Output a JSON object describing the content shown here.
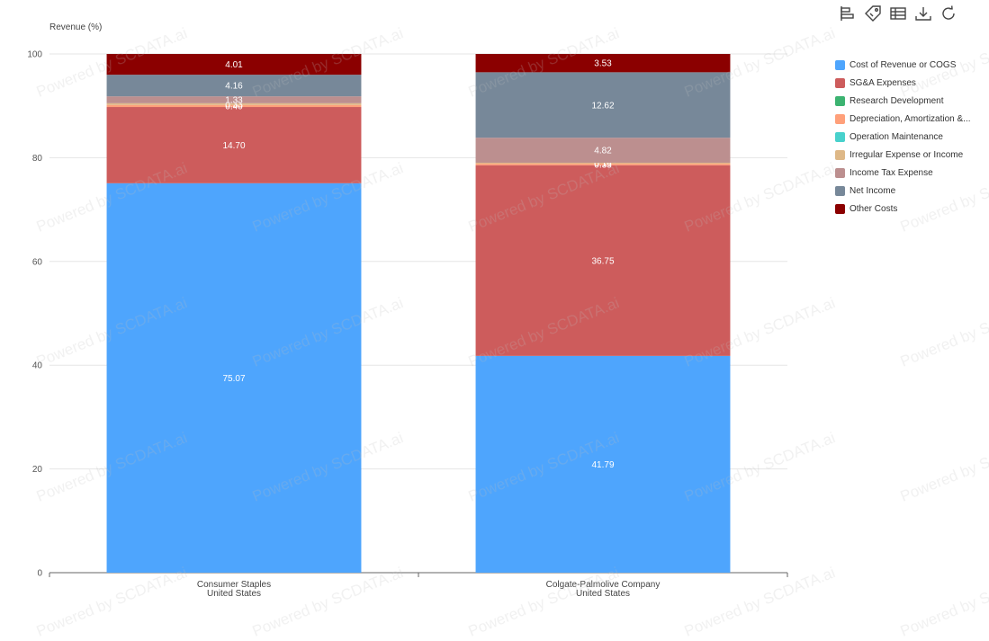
{
  "toolbar": {
    "icons": [
      "bar-chart-icon",
      "tag-icon",
      "table-icon",
      "download-icon",
      "refresh-icon"
    ]
  },
  "watermark": "Powered by SCDATA.ai",
  "chart_data": {
    "type": "bar",
    "stacked": true,
    "ylabel": "Revenue (%)",
    "ylim": [
      0,
      100
    ],
    "yticks": [
      "0",
      "20",
      "40",
      "60",
      "80",
      "100"
    ],
    "categories": [
      {
        "name": "Consumer Staples",
        "sub": "United States"
      },
      {
        "name": "Colgate-Palmolive Company",
        "sub": "United States"
      }
    ],
    "series": [
      {
        "name": "Cost of Revenue or COGS",
        "color": "#4ea5fd",
        "values": [
          75.07,
          41.79
        ],
        "labels": [
          "75.07",
          "41.79"
        ]
      },
      {
        "name": "SG&A Expenses",
        "color": "#cd5c5c",
        "values": [
          14.7,
          36.75
        ],
        "labels": [
          "14.70",
          "36.75"
        ]
      },
      {
        "name": "Research Development",
        "color": "#3cb371",
        "values": [
          0.0,
          0.0
        ],
        "labels": [
          "",
          ""
        ]
      },
      {
        "name": "Depreciation, Amortization &...",
        "color": "#ffa07a",
        "values": [
          0.4,
          0.33
        ],
        "labels": [
          "0.40",
          "0.33"
        ]
      },
      {
        "name": "Operation Maintenance",
        "color": "#48d1cc",
        "values": [
          0.0,
          0.0
        ],
        "labels": [
          "",
          ""
        ]
      },
      {
        "name": "Irregular Expense or Income",
        "color": "#deb887",
        "values": [
          0.33,
          0.16
        ],
        "labels": [
          "0.33",
          "0.16"
        ]
      },
      {
        "name": "Income Tax Expense",
        "color": "#bc8f8f",
        "values": [
          1.33,
          4.82
        ],
        "labels": [
          "1.33",
          "4.82"
        ]
      },
      {
        "name": "Net Income",
        "color": "#778899",
        "values": [
          4.16,
          12.62
        ],
        "labels": [
          "4.16",
          "12.62"
        ]
      },
      {
        "name": "Other Costs",
        "color": "#8b0000",
        "values": [
          4.01,
          3.53
        ],
        "labels": [
          "4.01",
          "3.53"
        ]
      }
    ]
  }
}
